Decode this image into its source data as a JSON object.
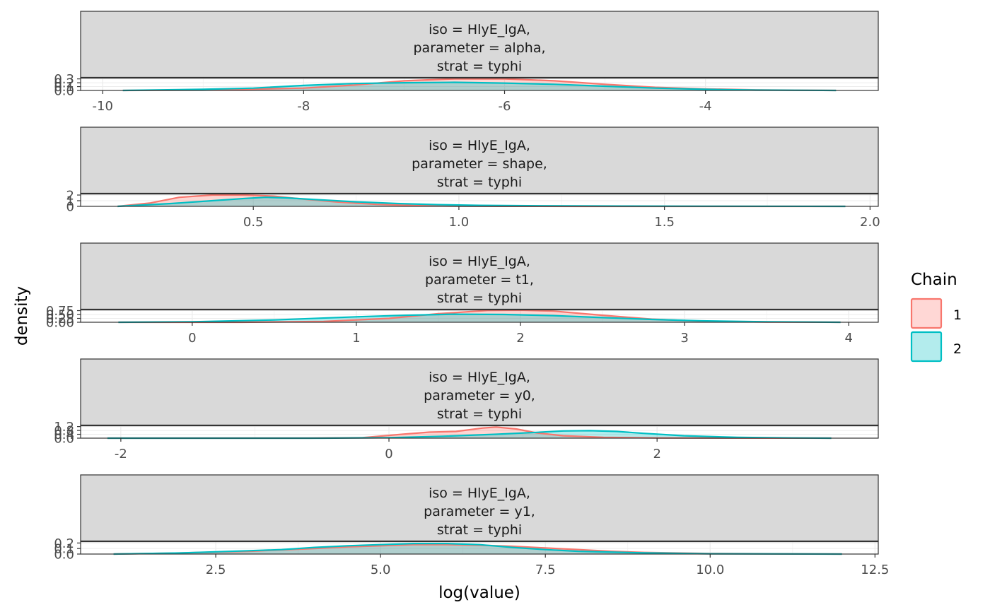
{
  "chart_data": {
    "type": "area",
    "xlabel": "log(value)",
    "ylabel": "density",
    "legend": {
      "title": "Chain",
      "placement": "right",
      "entries": [
        {
          "name": "1",
          "color": "#F8766D",
          "fill": "#FFD7D5"
        },
        {
          "name": "2",
          "color": "#00BFC4",
          "fill": "#B3ECED"
        }
      ]
    },
    "panels": [
      {
        "strip": [
          "iso = HlyE_IgA,",
          "parameter = alpha,",
          "strat = typhi"
        ],
        "xlim": [
          -10.22,
          -2.28
        ],
        "ylim": [
          0,
          0.33
        ],
        "x_ticks": [
          -10,
          -8,
          -6,
          -4
        ],
        "x_tick_labels": [
          "-10",
          "-8",
          "-6",
          "-4"
        ],
        "y_ticks": [
          0,
          0.1,
          0.2,
          0.3
        ],
        "y_tick_labels": [
          "0.0",
          "0.1",
          "0.2",
          "0.3"
        ],
        "series": [
          {
            "name": "1",
            "x": [
              -9.8,
              -9.0,
              -8.0,
              -7.5,
              -7.0,
              -6.5,
              -6.0,
              -5.5,
              -5.0,
              -4.5,
              -4.0,
              -3.5,
              -2.7
            ],
            "y": [
              0.0,
              0.01,
              0.06,
              0.14,
              0.25,
              0.3,
              0.3,
              0.25,
              0.16,
              0.08,
              0.04,
              0.015,
              0.0
            ]
          },
          {
            "name": "2",
            "x": [
              -9.8,
              -9.0,
              -8.5,
              -8.0,
              -7.5,
              -7.0,
              -6.5,
              -6.0,
              -5.5,
              -5.0,
              -4.5,
              -4.0,
              -3.5,
              -2.7
            ],
            "y": [
              0.0,
              0.03,
              0.06,
              0.13,
              0.18,
              0.2,
              0.21,
              0.19,
              0.16,
              0.11,
              0.06,
              0.03,
              0.01,
              0.0
            ]
          }
        ]
      },
      {
        "strip": [
          "iso = HlyE_IgA,",
          "parameter = shape,",
          "strat = typhi"
        ],
        "xlim": [
          0.08,
          2.02
        ],
        "ylim": [
          0,
          2.25
        ],
        "x_ticks": [
          0.5,
          1.0,
          1.5,
          2.0
        ],
        "x_tick_labels": [
          "0.5",
          "1.0",
          "1.5",
          "2.0"
        ],
        "y_ticks": [
          0,
          1,
          2
        ],
        "y_tick_labels": [
          "0",
          "1",
          "2"
        ],
        "series": [
          {
            "name": "1",
            "x": [
              0.17,
              0.25,
              0.32,
              0.4,
              0.48,
              0.55,
              0.62,
              0.7,
              0.8,
              0.9,
              1.0,
              1.1,
              1.3,
              1.6,
              1.94
            ],
            "y": [
              0.0,
              0.6,
              1.6,
              2.0,
              2.0,
              1.8,
              1.3,
              0.8,
              0.35,
              0.12,
              0.04,
              0.01,
              0.0,
              0.0,
              0.0
            ]
          },
          {
            "name": "2",
            "x": [
              0.17,
              0.3,
              0.4,
              0.48,
              0.53,
              0.58,
              0.65,
              0.75,
              0.85,
              0.95,
              1.05,
              1.2,
              1.4,
              1.6,
              1.94
            ],
            "y": [
              0.0,
              0.5,
              1.0,
              1.4,
              1.6,
              1.5,
              1.2,
              0.8,
              0.5,
              0.3,
              0.18,
              0.1,
              0.05,
              0.02,
              0.0
            ]
          }
        ]
      },
      {
        "strip": [
          "iso = HlyE_IgA,",
          "parameter = t1,",
          "strat = typhi"
        ],
        "xlim": [
          -0.68,
          4.18
        ],
        "ylim": [
          0,
          0.82
        ],
        "x_ticks": [
          0,
          1,
          2,
          3,
          4
        ],
        "x_tick_labels": [
          "0",
          "1",
          "2",
          "3",
          "4"
        ],
        "y_ticks": [
          0,
          0.25,
          0.5,
          0.75
        ],
        "y_tick_labels": [
          "0.00",
          "0.25",
          "0.50",
          "0.75"
        ],
        "series": [
          {
            "name": "1",
            "x": [
              -0.45,
              0.3,
              0.8,
              1.2,
              1.5,
              1.8,
              2.0,
              2.2,
              2.5,
              2.8,
              3.1,
              3.5,
              3.95
            ],
            "y": [
              0.0,
              0.0,
              0.05,
              0.25,
              0.55,
              0.76,
              0.78,
              0.72,
              0.45,
              0.2,
              0.07,
              0.02,
              0.0
            ]
          },
          {
            "name": "2",
            "x": [
              -0.45,
              0.0,
              0.5,
              1.0,
              1.3,
              1.6,
              1.9,
              2.2,
              2.5,
              2.8,
              3.1,
              3.5,
              3.95
            ],
            "y": [
              0.0,
              0.03,
              0.15,
              0.35,
              0.45,
              0.52,
              0.5,
              0.43,
              0.3,
              0.18,
              0.09,
              0.03,
              0.0
            ]
          }
        ]
      },
      {
        "strip": [
          "iso = HlyE_IgA,",
          "parameter = y0,",
          "strat = typhi"
        ],
        "xlim": [
          -2.3,
          3.65
        ],
        "ylim": [
          0,
          1.32
        ],
        "x_ticks": [
          -2,
          0,
          2
        ],
        "x_tick_labels": [
          "-2",
          "0",
          "2"
        ],
        "y_ticks": [
          0,
          0.4,
          0.8,
          1.2
        ],
        "y_tick_labels": [
          "0.0",
          "0.4",
          "0.8",
          "1.2"
        ],
        "series": [
          {
            "name": "1",
            "x": [
              -2.1,
              -0.6,
              -0.2,
              0.1,
              0.3,
              0.5,
              0.7,
              0.8,
              0.95,
              1.1,
              1.3,
              1.6,
              2.0,
              3.3
            ],
            "y": [
              0.0,
              0.0,
              0.05,
              0.4,
              0.62,
              0.7,
              1.05,
              1.15,
              0.95,
              0.55,
              0.25,
              0.08,
              0.02,
              0.0
            ]
          },
          {
            "name": "2",
            "x": [
              -2.1,
              -0.5,
              0.0,
              0.4,
              0.8,
              1.1,
              1.3,
              1.5,
              1.7,
              1.9,
              2.2,
              2.6,
              3.0,
              3.3
            ],
            "y": [
              0.0,
              0.0,
              0.05,
              0.2,
              0.4,
              0.6,
              0.75,
              0.78,
              0.7,
              0.5,
              0.25,
              0.08,
              0.02,
              0.0
            ]
          }
        ]
      },
      {
        "strip": [
          "iso = HlyE_IgA,",
          "parameter = y1,",
          "strat = typhi"
        ],
        "xlim": [
          0.45,
          12.55
        ],
        "ylim": [
          0,
          0.23
        ],
        "x_ticks": [
          2.5,
          5.0,
          7.5,
          10.0,
          12.5
        ],
        "x_tick_labels": [
          "2.5",
          "5.0",
          "7.5",
          "10.0",
          "12.5"
        ],
        "y_ticks": [
          0,
          0.1,
          0.2
        ],
        "y_tick_labels": [
          "0.0",
          "0.1",
          "0.2"
        ],
        "series": [
          {
            "name": "1",
            "x": [
              0.95,
              2.0,
              3.0,
              4.0,
              4.5,
              5.0,
              5.5,
              6.0,
              6.5,
              7.0,
              7.5,
              8.0,
              8.5,
              9.0,
              10.0,
              12.0
            ],
            "y": [
              0.0,
              0.02,
              0.05,
              0.1,
              0.13,
              0.15,
              0.17,
              0.17,
              0.16,
              0.14,
              0.11,
              0.08,
              0.05,
              0.03,
              0.01,
              0.0
            ]
          },
          {
            "name": "2",
            "x": [
              0.95,
              2.0,
              3.0,
              3.5,
              4.0,
              4.5,
              5.0,
              5.5,
              6.0,
              6.5,
              7.0,
              7.5,
              8.0,
              9.0,
              10.0,
              12.0
            ],
            "y": [
              0.0,
              0.02,
              0.06,
              0.08,
              0.12,
              0.15,
              0.17,
              0.19,
              0.19,
              0.17,
              0.12,
              0.08,
              0.05,
              0.02,
              0.005,
              0.0
            ]
          }
        ]
      }
    ]
  }
}
